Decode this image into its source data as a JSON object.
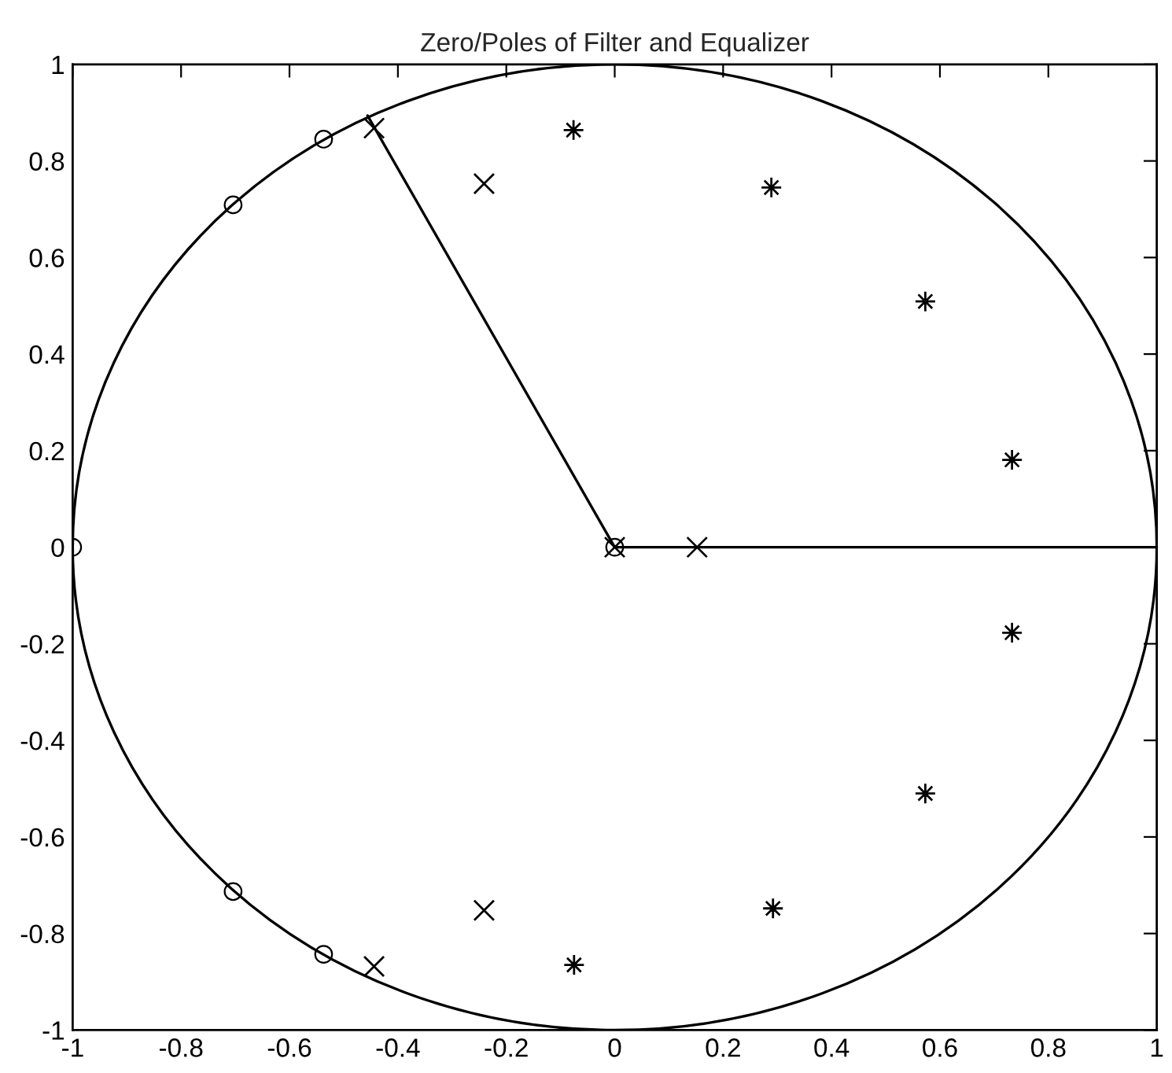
{
  "chart_data": {
    "type": "line",
    "title": "Zero/Poles of Filter and Equalizer",
    "xlim": [
      -1,
      1
    ],
    "ylim": [
      -1,
      1
    ],
    "xticks": [
      -1,
      -0.8,
      -0.6,
      -0.4,
      -0.2,
      0,
      0.2,
      0.4,
      0.6,
      0.8,
      1
    ],
    "yticks": [
      -1,
      -0.8,
      -0.6,
      -0.4,
      -0.2,
      0,
      0.2,
      0.4,
      0.6,
      0.8,
      1
    ],
    "grid": false,
    "legend": false,
    "series": [
      {
        "color": "#000000",
        "marker": "none",
        "line_style": "solid",
        "x": [
          -0.456,
          0,
          1
        ],
        "values": [
          0.894,
          0,
          0
        ]
      },
      {
        "type": "scatter",
        "color": "#000000",
        "marker": "circle",
        "x": [
          -1,
          -0.704,
          -0.537,
          -0.704,
          -0.537,
          0
        ],
        "values": [
          0,
          0.709,
          0.845,
          -0.713,
          -0.843,
          0
        ]
      },
      {
        "type": "scatter",
        "color": "#000000",
        "marker": "cross",
        "x": [
          -0.444,
          -0.241,
          0,
          0.152,
          -0.241,
          -0.444
        ],
        "values": [
          0.868,
          0.753,
          0,
          0,
          -0.752,
          -0.868
        ]
      },
      {
        "type": "scatter",
        "color": "#000000",
        "marker": "star",
        "x": [
          -0.076,
          0.289,
          0.573,
          0.733,
          0.733,
          0.573,
          0.292,
          -0.075
        ],
        "values": [
          0.864,
          0.745,
          0.509,
          0.181,
          -0.177,
          -0.51,
          -0.748,
          -0.865
        ]
      }
    ]
  }
}
